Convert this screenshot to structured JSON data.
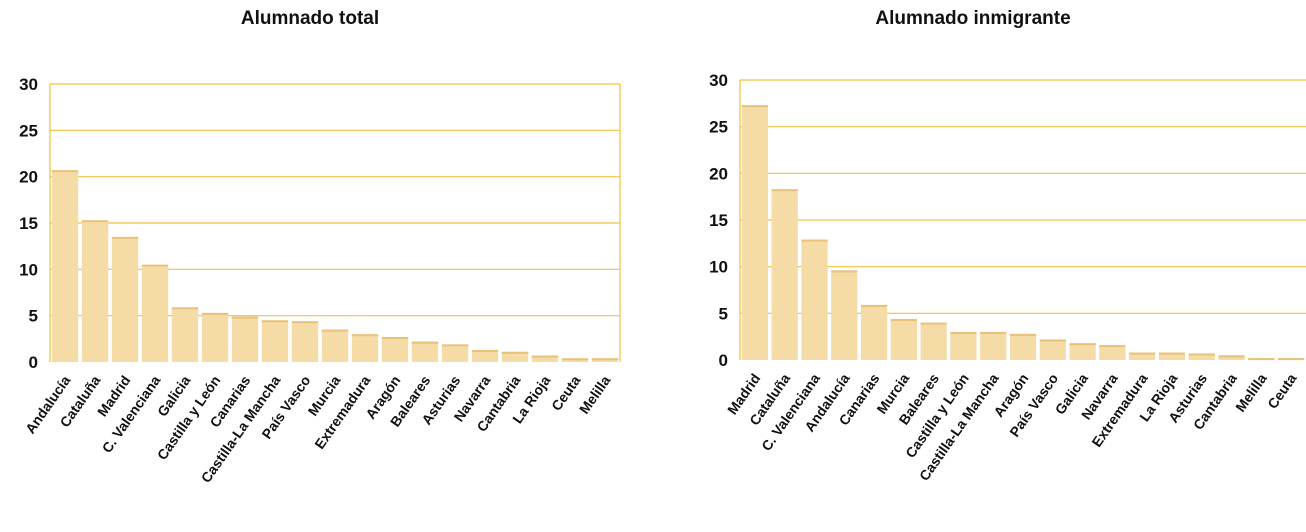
{
  "chart_data": [
    {
      "type": "bar",
      "title": "Alumnado total",
      "categories": [
        "Andalucía",
        "Cataluña",
        "Madrid",
        "C. Valenciana",
        "Galicia",
        "Castilla y León",
        "Canarias",
        "Castilla-La Mancha",
        "País Vasco",
        "Murcia",
        "Extremadura",
        "Aragón",
        "Baleares",
        "Asturias",
        "Navarra",
        "Cantabria",
        "La Rioja",
        "Ceuta",
        "Melilla"
      ],
      "values": [
        20.7,
        15.3,
        13.5,
        10.5,
        5.9,
        5.3,
        4.9,
        4.5,
        4.4,
        3.5,
        3.0,
        2.7,
        2.2,
        1.9,
        1.3,
        1.1,
        0.7,
        0.4,
        0.4
      ],
      "yticks": [
        0,
        5,
        10,
        15,
        20,
        25,
        30
      ],
      "ylim": [
        0,
        30
      ],
      "grid": true,
      "colors": {
        "bar": "#f5dba5",
        "bar_top": "#e8c27a",
        "grid": "#f0c040",
        "axis": "#f0c040"
      }
    },
    {
      "type": "bar",
      "title": "Alumnado inmigrante",
      "categories": [
        "Madrid",
        "Cataluña",
        "C. Valenciana",
        "Andalucía",
        "Canarias",
        "Murcia",
        "Baleares",
        "Castilla y León",
        "Castilla-La Mancha",
        "Aragón",
        "País Vasco",
        "Galicia",
        "Navarra",
        "Extremadura",
        "La Rioja",
        "Asturias",
        "Cantabria",
        "Melilla",
        "Ceuta"
      ],
      "values": [
        27.3,
        18.3,
        12.9,
        9.6,
        5.9,
        4.4,
        4.0,
        3.0,
        3.0,
        2.8,
        2.2,
        1.8,
        1.6,
        0.8,
        0.8,
        0.7,
        0.5,
        0.2,
        0.2
      ],
      "yticks": [
        0,
        5,
        10,
        15,
        20,
        25,
        30
      ],
      "ylim": [
        0,
        30
      ],
      "grid": true,
      "colors": {
        "bar": "#f5dba5",
        "bar_top": "#e8c27a",
        "grid": "#f0c040",
        "axis": "#f0c040"
      }
    }
  ]
}
